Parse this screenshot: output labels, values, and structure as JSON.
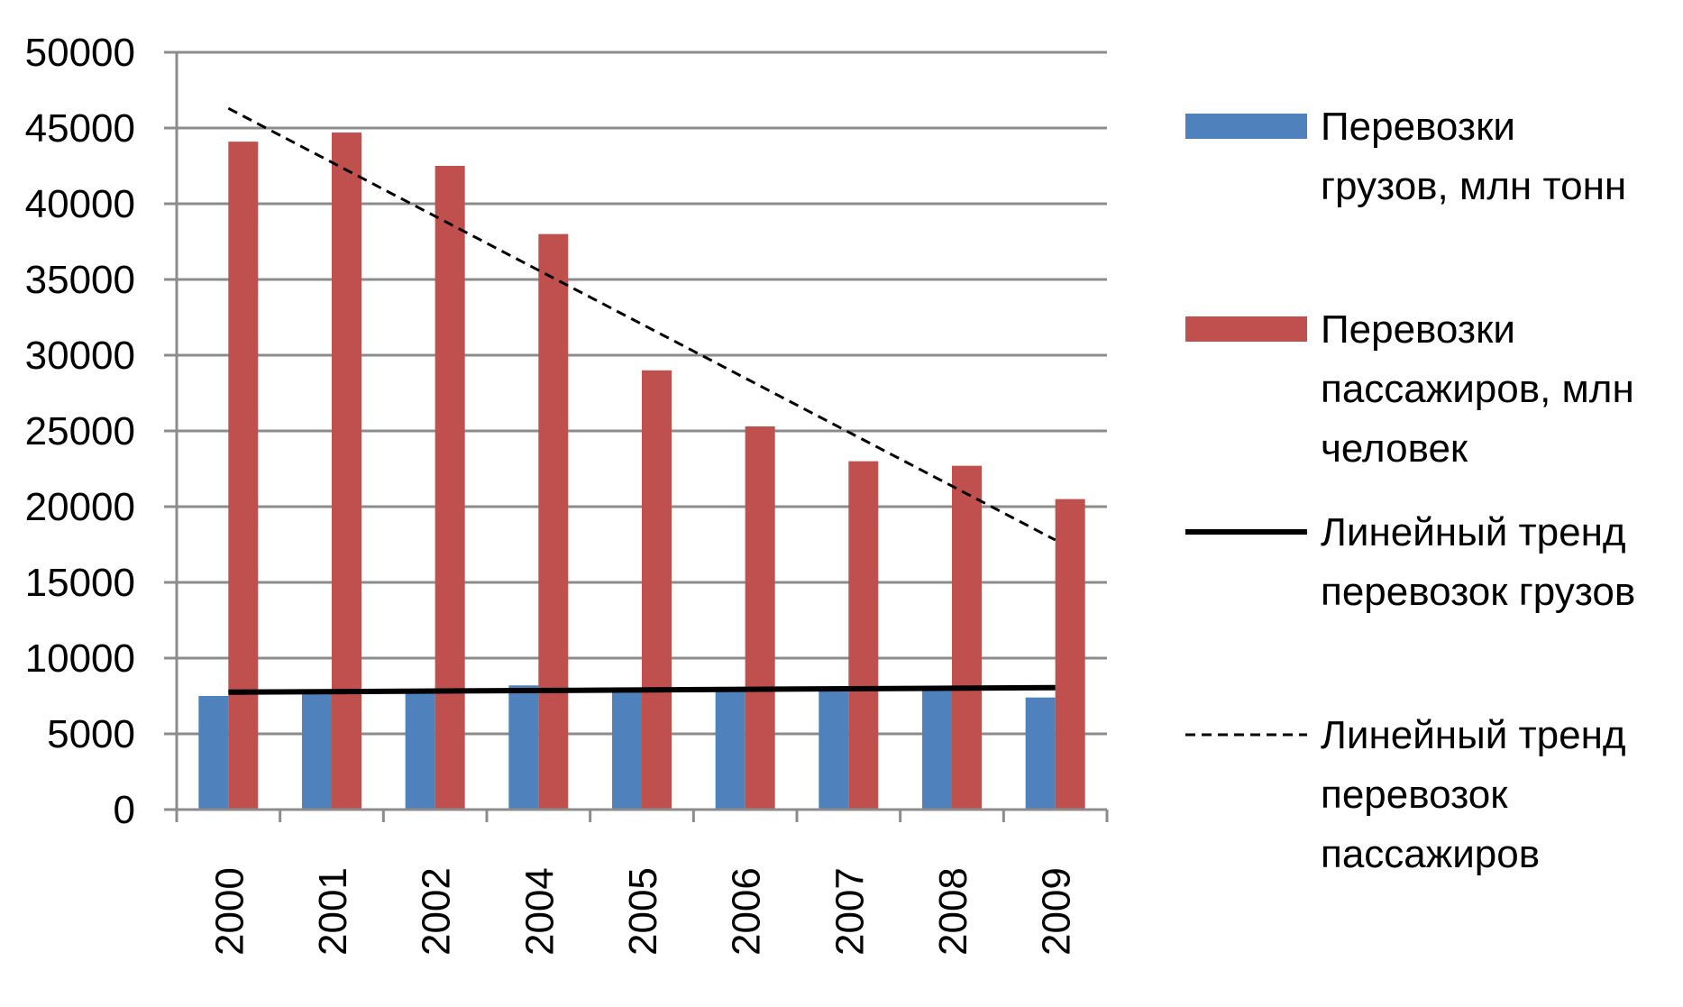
{
  "chart_data": {
    "type": "bar",
    "categories": [
      "2000",
      "2001",
      "2002",
      "2004",
      "2005",
      "2006",
      "2007",
      "2008",
      "2009"
    ],
    "series": [
      {
        "name": "Перевозки грузов, млн тонн",
        "color": "#4f81bd",
        "values": [
          7500,
          7800,
          7900,
          8200,
          8000,
          8000,
          8000,
          8000,
          7400
        ]
      },
      {
        "name": "Перевозки пассажиров, млн человек",
        "color": "#c0504d",
        "values": [
          44100,
          44700,
          42500,
          38000,
          29000,
          25300,
          23000,
          22700,
          20500
        ]
      }
    ],
    "trendlines": [
      {
        "name": "Линейный тренд перевозок грузов",
        "style": "solid",
        "color": "#000000",
        "start": 7750,
        "end": 8050
      },
      {
        "name": "Линейный тренд перевозок пассажиров",
        "style": "dashed",
        "color": "#000000",
        "start": 46300,
        "end": 17800
      }
    ],
    "ylim": [
      0,
      50000
    ],
    "yticks": [
      "0",
      "5000",
      "10000",
      "15000",
      "20000",
      "25000",
      "30000",
      "35000",
      "40000",
      "45000",
      "50000"
    ],
    "grid": true,
    "legend_position": "right",
    "legend": [
      {
        "lines": [
          "Перевозки",
          "грузов, млн тонн"
        ]
      },
      {
        "lines": [
          "Перевозки",
          "пассажиров, млн",
          "человек"
        ]
      },
      {
        "lines": [
          "Линейный тренд",
          "перевозок грузов"
        ]
      },
      {
        "lines": [
          "Линейный тренд",
          "перевозок",
          "пассажиров"
        ]
      }
    ]
  }
}
